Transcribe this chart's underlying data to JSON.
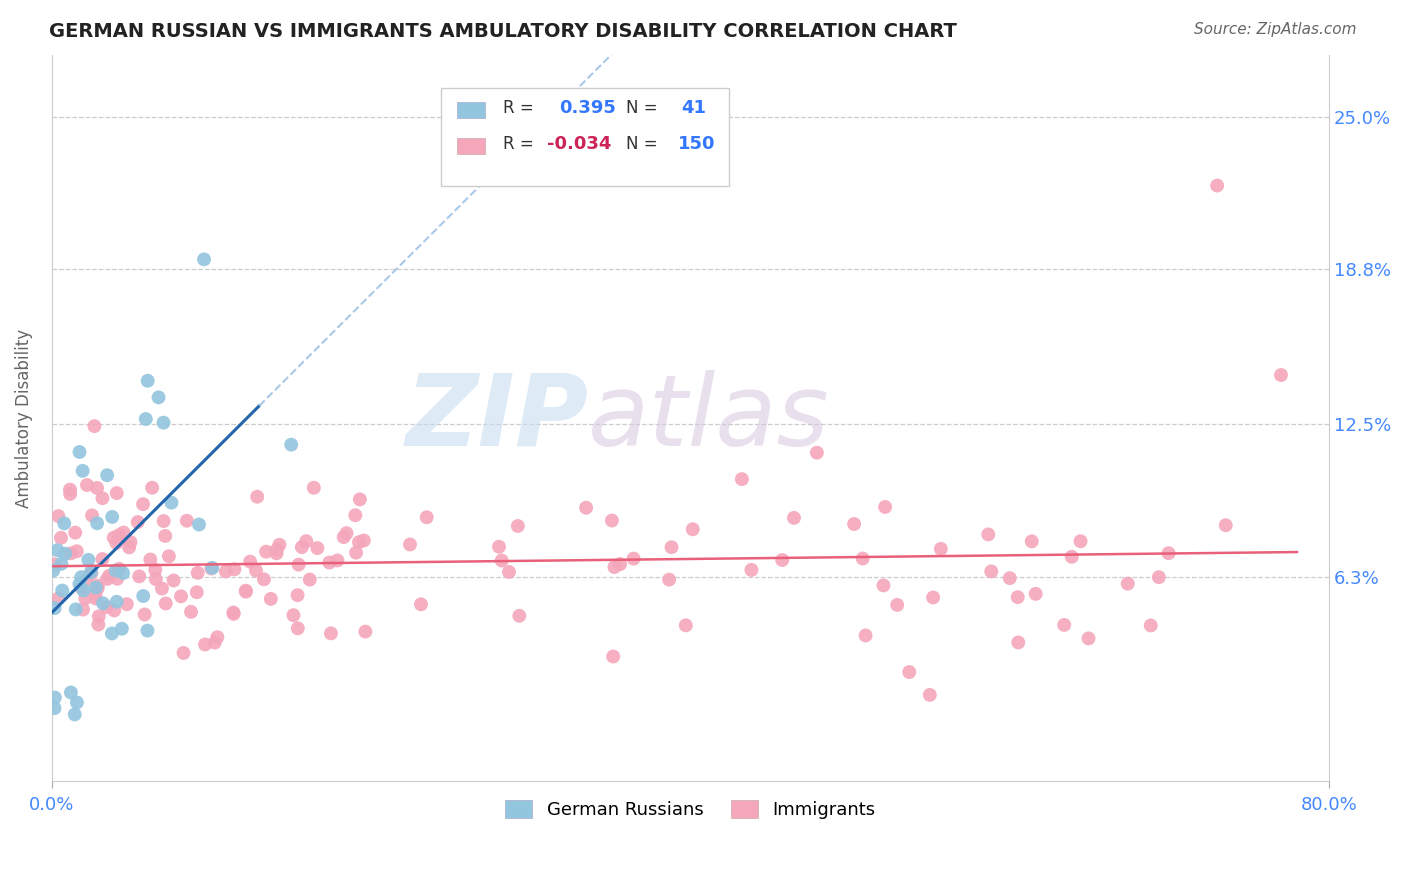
{
  "title": "GERMAN RUSSIAN VS IMMIGRANTS AMBULATORY DISABILITY CORRELATION CHART",
  "source_text": "Source: ZipAtlas.com",
  "ylabel": "Ambulatory Disability",
  "xlim": [
    0.0,
    0.8
  ],
  "ylim": [
    -0.02,
    0.275
  ],
  "yticks": [
    0.063,
    0.125,
    0.188,
    0.25
  ],
  "ytick_labels": [
    "6.3%",
    "12.5%",
    "18.8%",
    "25.0%"
  ],
  "blue_color": "#92c5de",
  "pink_color": "#f4a6bb",
  "blue_line_color": "#2166ac",
  "pink_line_color": "#e8607a",
  "watermark_zip": "ZIP",
  "watermark_atlas": "atlas",
  "blue_r": 0.395,
  "blue_n": 41,
  "pink_r": -0.034,
  "pink_n": 150
}
